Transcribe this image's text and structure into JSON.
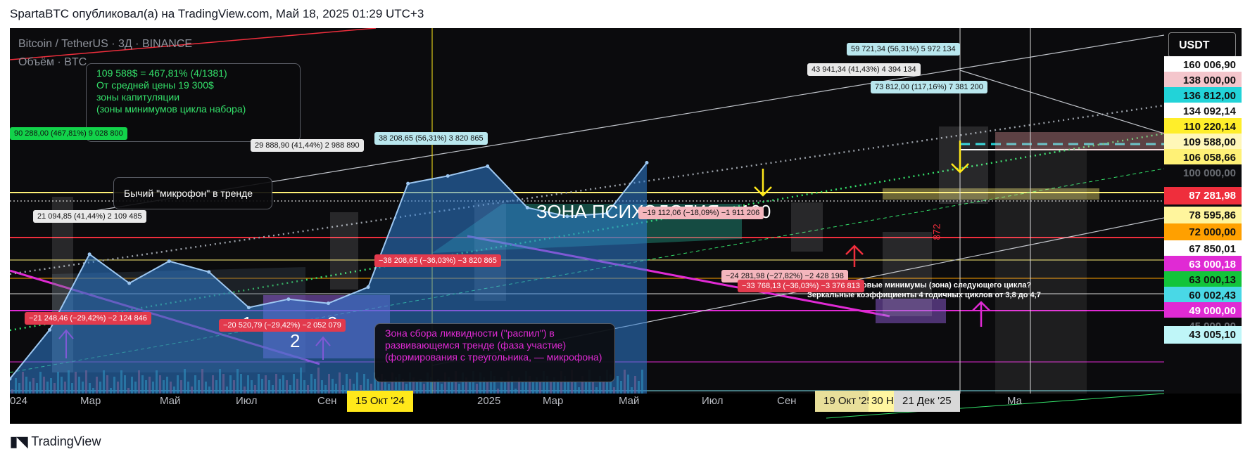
{
  "header": {
    "title": "SpartaBTC опубликовал(а) на TradingView.com, Май 18, 2025 01:29 UTC+3"
  },
  "footer": {
    "brand": "TradingView"
  },
  "chart_header": {
    "symbol": "Bitcoin / TetherUS · 3Д · BINANCE",
    "volume": "Объём · BTC",
    "currency": "USDT"
  },
  "notes": {
    "capitulation": [
      "109 588$ = 467,81% (4/1381)",
      "От средней цены 19 300$",
      "зоны капитуляции",
      "(зоны минимумов цикла набора)"
    ],
    "microphone": "Бычий \"микрофон\" в тренде",
    "liquidity": [
      "Зона сбора ликвидности (\"распил\") в",
      "развивающемся тренде (фаза участие)",
      "(формирования с треугольника, — микрофона)"
    ],
    "zone_title": "ЗОНА ПСИХОЛОГИЯ = 100",
    "cycle_q": "Ценовые минимумы (зона) следующего цикла?",
    "cycle_coef": "Зеркальные коэффициенты 4 годичных циклов от 3,8 до 4,7",
    "numbers": [
      "1",
      "2",
      "3"
    ],
    "vertical_num": "872"
  },
  "measurements": [
    {
      "text": "90 288,00 (467,81%) 9 028 800",
      "style": "g"
    },
    {
      "text": "29 888,90 (41,44%) 2 988 890",
      "style": "w"
    },
    {
      "text": "38 208,65 (56,31%) 3 820 865",
      "style": "c"
    },
    {
      "text": "21 094,85 (41,44%) 2 109 485",
      "style": "w"
    },
    {
      "text": "59 721,34 (56,31%) 5 972 134",
      "style": "c"
    },
    {
      "text": "43 941,34 (41,43%) 4 394 134",
      "style": "w"
    },
    {
      "text": "73 812,00 (117,16%) 7 381 200",
      "style": "c"
    },
    {
      "text": "−19 112,06 (−18,09%) −1 911 206",
      "style": "p"
    },
    {
      "text": "−38 208,65 (−36,03%) −3 820 865",
      "style": "r"
    },
    {
      "text": "−21 248,46 (−29,42%) −2 124 846",
      "style": "r"
    },
    {
      "text": "−20 520,79 (−29,42%) −2 052 079",
      "style": "r"
    },
    {
      "text": "−24 281,98 (−27,82%) −2 428 198",
      "style": "p"
    },
    {
      "text": "−33 768,13 (−36,03%) −3 376 813",
      "style": "r"
    }
  ],
  "price_labels": [
    {
      "text": "160 006,90",
      "bg": "#ffffff",
      "fg": "#111111"
    },
    {
      "text": "138 000,00",
      "bg": "#f4c6cc",
      "fg": "#111111"
    },
    {
      "text": "136 812,00",
      "bg": "#22d3d8",
      "fg": "#111111"
    },
    {
      "text": "134 092,14",
      "bg": "#ffffff",
      "fg": "#111111"
    },
    {
      "text": "110 220,14",
      "bg": "#ffee2a",
      "fg": "#111111"
    },
    {
      "text": "109 588,00",
      "bg": "#fff7b8",
      "fg": "#111111"
    },
    {
      "text": "106 058,66",
      "bg": "#fff176",
      "fg": "#111111"
    },
    {
      "text": "100 000,00",
      "bg": "#0b0b0d",
      "fg": "#6a6d73"
    },
    {
      "text": "87 281,98",
      "bg": "#ef2e3c",
      "fg": "#ffffff"
    },
    {
      "text": "78 595,86",
      "bg": "#fff59d",
      "fg": "#111111"
    },
    {
      "text": "72 000,00",
      "bg": "#ffa000",
      "fg": "#111111"
    },
    {
      "text": "67 850,01",
      "bg": "#ffffff",
      "fg": "#111111"
    },
    {
      "text": "63 000,18",
      "bg": "#e02ad4",
      "fg": "#ffffff"
    },
    {
      "text": "63 000,13",
      "bg": "#12c43a",
      "fg": "#111111"
    },
    {
      "text": "60 002,43",
      "bg": "#49d8e6",
      "fg": "#111111"
    },
    {
      "text": "49 000,00",
      "bg": "#e02ad4",
      "fg": "#ffffff"
    },
    {
      "text": "45 000,00",
      "bg": "#0b0b0d",
      "fg": "#6a6d73"
    },
    {
      "text": "43 005,10",
      "bg": "#bff6f8",
      "fg": "#111111"
    }
  ],
  "x_axis": {
    "labels": [
      "024",
      "Мар",
      "Май",
      "Июл",
      "Сен",
      "2025",
      "Мар",
      "Май",
      "Июл",
      "Сен",
      "Ма"
    ],
    "highlights": [
      {
        "text": "15 Окт '24",
        "bg": "#ffe81a"
      },
      {
        "text": "19 Окт '25",
        "bg": "#e8df9a"
      },
      {
        "text": "30 Н",
        "bg": "#fff6a0"
      },
      {
        "text": "21 Дек '25",
        "bg": "#d8d8d8"
      }
    ]
  },
  "chart_data": {
    "type": "area",
    "title": "Bitcoin / TetherUS · 3Д · BINANCE",
    "x": [
      "2024-01",
      "2024-02",
      "2024-03",
      "2024-04",
      "2024-05",
      "2024-06",
      "2024-07",
      "2024-08",
      "2024-09",
      "2024-10",
      "2024-11",
      "2024-12",
      "2025-01",
      "2025-02",
      "2025-03",
      "2025-04",
      "2025-05"
    ],
    "series": [
      {
        "name": "Bitcoin / TetherUS",
        "values": [
          42500,
          52000,
          71000,
          63000,
          69000,
          66000,
          57000,
          59000,
          58000,
          62000,
          95000,
          98000,
          102000,
          86000,
          83000,
          84000,
          103500
        ]
      }
    ],
    "ylim": [
      40000,
      170000
    ],
    "scale": "log",
    "colors": {
      "area": "#2f7fd6",
      "line": "#9ec8f2"
    }
  }
}
